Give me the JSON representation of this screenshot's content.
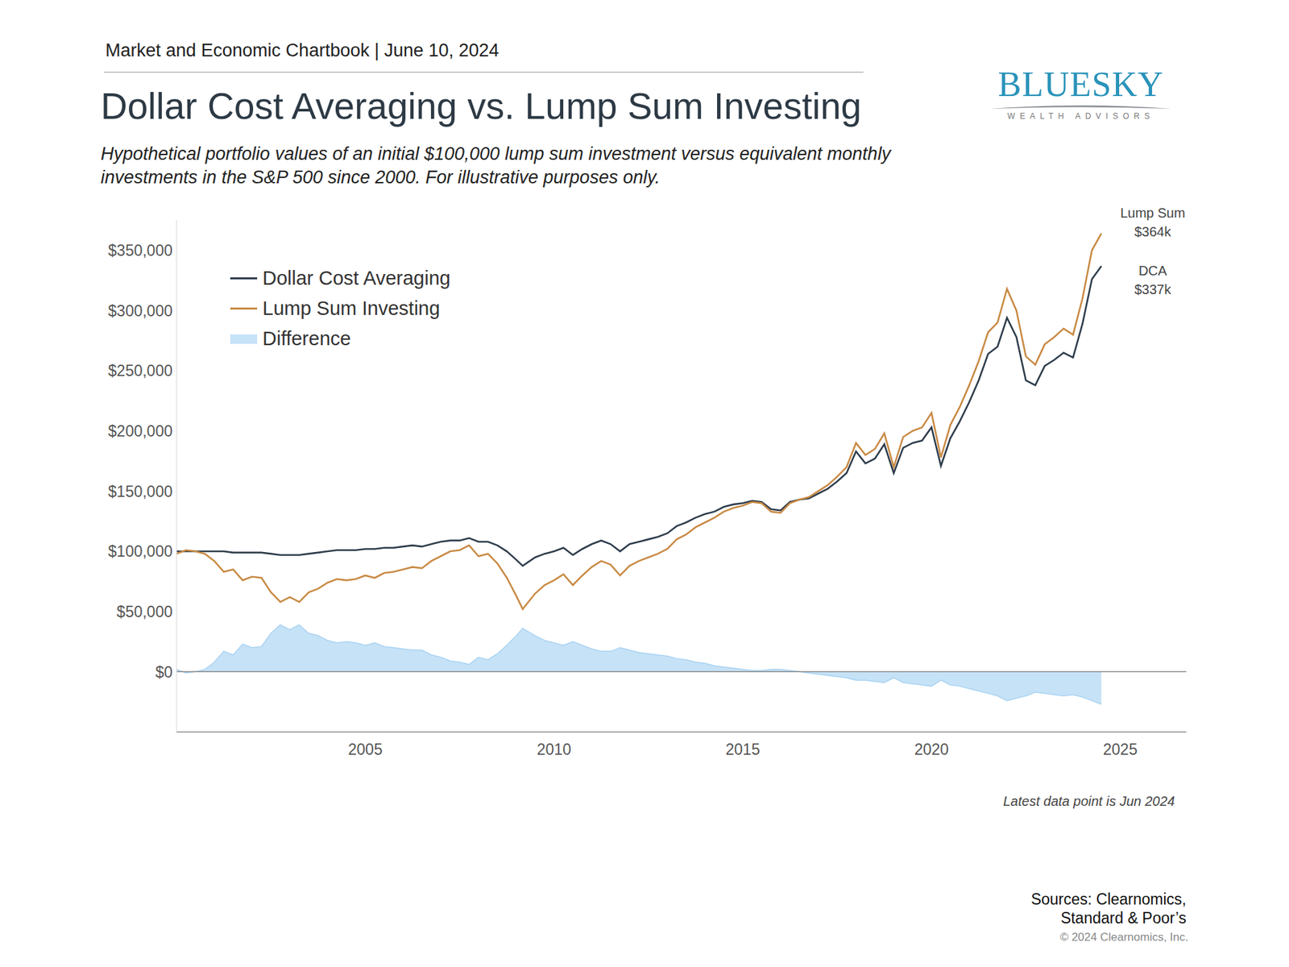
{
  "chart_data": {
    "type": "line",
    "header": "Market and Economic Chartbook | June 10, 2024",
    "title": "Dollar Cost Averaging vs. Lump Sum Investing",
    "subtitle": [
      "Hypothetical portfolio values of an initial $100,000 lump sum investment versus equivalent monthly",
      "investments in the S&P 500 since 2000. For illustrative purposes only."
    ],
    "logo": [
      "BLUESKY",
      "WEALTH ADVISORS"
    ],
    "annotations": [
      [
        "Lump Sum",
        "$364k"
      ],
      [
        "DCA",
        "$337k"
      ]
    ],
    "note": "Latest data point is Jun 2024",
    "sources": [
      "Sources: Clearnomics,",
      "Standard & Poor’s"
    ],
    "copyright": "© 2024 Clearnomics, Inc.",
    "x": [
      2000.0,
      2000.25,
      2000.5,
      2000.75,
      2001.0,
      2001.25,
      2001.5,
      2001.75,
      2002.0,
      2002.25,
      2002.5,
      2002.75,
      2003.0,
      2003.25,
      2003.5,
      2003.75,
      2004.0,
      2004.25,
      2004.5,
      2004.75,
      2005.0,
      2005.25,
      2005.5,
      2005.75,
      2006.0,
      2006.25,
      2006.5,
      2006.75,
      2007.0,
      2007.25,
      2007.5,
      2007.75,
      2008.0,
      2008.25,
      2008.5,
      2008.75,
      2009.0,
      2009.17,
      2009.5,
      2009.75,
      2010.0,
      2010.25,
      2010.5,
      2010.75,
      2011.0,
      2011.25,
      2011.5,
      2011.75,
      2012.0,
      2012.25,
      2012.5,
      2012.75,
      2013.0,
      2013.25,
      2013.5,
      2013.75,
      2014.0,
      2014.25,
      2014.5,
      2014.75,
      2015.0,
      2015.25,
      2015.5,
      2015.75,
      2016.0,
      2016.25,
      2016.5,
      2016.75,
      2017.0,
      2017.25,
      2017.5,
      2017.75,
      2018.0,
      2018.25,
      2018.5,
      2018.75,
      2019.0,
      2019.25,
      2019.5,
      2019.75,
      2020.0,
      2020.25,
      2020.5,
      2020.75,
      2021.0,
      2021.25,
      2021.5,
      2021.75,
      2022.0,
      2022.25,
      2022.5,
      2022.75,
      2023.0,
      2023.25,
      2023.5,
      2023.75,
      2024.0,
      2024.25,
      2024.5
    ],
    "series": [
      {
        "name": "Dollar Cost Averaging",
        "type": "line",
        "color": "#2e3d4c",
        "values": [
          100000,
          100000,
          100000,
          100000,
          100000,
          100000,
          99000,
          99000,
          99000,
          99000,
          98000,
          97000,
          97000,
          97000,
          98000,
          99000,
          100000,
          101000,
          101000,
          101000,
          102000,
          102000,
          103000,
          103000,
          104000,
          105000,
          104000,
          106000,
          108000,
          109000,
          109000,
          111000,
          108000,
          108000,
          105000,
          100000,
          93000,
          88000,
          95000,
          98000,
          100000,
          103000,
          97000,
          102000,
          106000,
          109000,
          106000,
          100000,
          106000,
          108000,
          110000,
          112000,
          115000,
          121000,
          124000,
          128000,
          131000,
          133000,
          137000,
          139000,
          140000,
          142000,
          141000,
          135000,
          134000,
          141000,
          143000,
          144000,
          148000,
          152000,
          158000,
          165000,
          183000,
          173000,
          177000,
          189000,
          165000,
          186000,
          190000,
          192000,
          203000,
          171000,
          194000,
          208000,
          224000,
          242000,
          264000,
          270000,
          294000,
          278000,
          242000,
          238000,
          254000,
          259000,
          265000,
          261000,
          289000,
          326000,
          337000
        ]
      },
      {
        "name": "Lump Sum Investing",
        "type": "line",
        "color": "#c98a44",
        "values": [
          98000,
          101000,
          100000,
          98000,
          92000,
          83000,
          85000,
          76000,
          79000,
          78000,
          66000,
          58000,
          62000,
          58000,
          66000,
          69000,
          74000,
          77000,
          76000,
          77000,
          80000,
          78000,
          82000,
          83000,
          85000,
          87000,
          86000,
          92000,
          96000,
          100000,
          101000,
          105000,
          96000,
          98000,
          90000,
          78000,
          63000,
          52000,
          65000,
          72000,
          76000,
          81000,
          72000,
          80000,
          87000,
          92000,
          89000,
          80000,
          88000,
          92000,
          95000,
          98000,
          102000,
          110000,
          114000,
          120000,
          124000,
          128000,
          133000,
          136000,
          138000,
          141000,
          140000,
          133000,
          132000,
          140000,
          143000,
          145000,
          150000,
          155000,
          162000,
          170000,
          190000,
          180000,
          185000,
          198000,
          170000,
          195000,
          200000,
          203000,
          215000,
          178000,
          205000,
          220000,
          238000,
          258000,
          282000,
          290000,
          318000,
          300000,
          262000,
          255000,
          272000,
          278000,
          285000,
          280000,
          310000,
          350000,
          364000
        ]
      },
      {
        "name": "Difference",
        "type": "area",
        "color": "#c6e2f7",
        "values": [
          2000,
          -1000,
          0,
          2000,
          8000,
          17000,
          14000,
          23000,
          20000,
          21000,
          32000,
          39000,
          35000,
          39000,
          32000,
          30000,
          26000,
          24000,
          25000,
          24000,
          22000,
          24000,
          21000,
          20000,
          19000,
          18000,
          18000,
          14000,
          12000,
          9000,
          8000,
          6000,
          12000,
          10000,
          15000,
          22000,
          30000,
          36000,
          30000,
          26000,
          24000,
          22000,
          25000,
          22000,
          19000,
          17000,
          17000,
          20000,
          18000,
          16000,
          15000,
          14000,
          13000,
          11000,
          10000,
          8000,
          7000,
          5000,
          4000,
          3000,
          2000,
          1000,
          1000,
          2000,
          2000,
          1000,
          0,
          -1000,
          -2000,
          -3000,
          -4000,
          -5000,
          -7000,
          -7000,
          -8000,
          -9000,
          -5000,
          -9000,
          -10000,
          -11000,
          -12000,
          -7000,
          -11000,
          -12000,
          -14000,
          -16000,
          -18000,
          -20000,
          -24000,
          -22000,
          -20000,
          -17000,
          -18000,
          -19000,
          -20000,
          -19000,
          -21000,
          -24000,
          -27000
        ]
      }
    ],
    "xlim": [
      2000,
      2026.75
    ],
    "xticks": [
      2005,
      2010,
      2015,
      2020,
      2025
    ],
    "ylim": [
      -50000,
      375000
    ],
    "yticks": [
      {
        "value": 0,
        "label": "$0"
      },
      {
        "value": 50000,
        "label": "$50,000"
      },
      {
        "value": 100000,
        "label": "$100,000"
      },
      {
        "value": 150000,
        "label": "$150,000"
      },
      {
        "value": 200000,
        "label": "$200,000"
      },
      {
        "value": 250000,
        "label": "$250,000"
      },
      {
        "value": 300000,
        "label": "$300,000"
      },
      {
        "value": 350000,
        "label": "$350,000"
      }
    ],
    "grid": false,
    "legend": "upper left"
  }
}
